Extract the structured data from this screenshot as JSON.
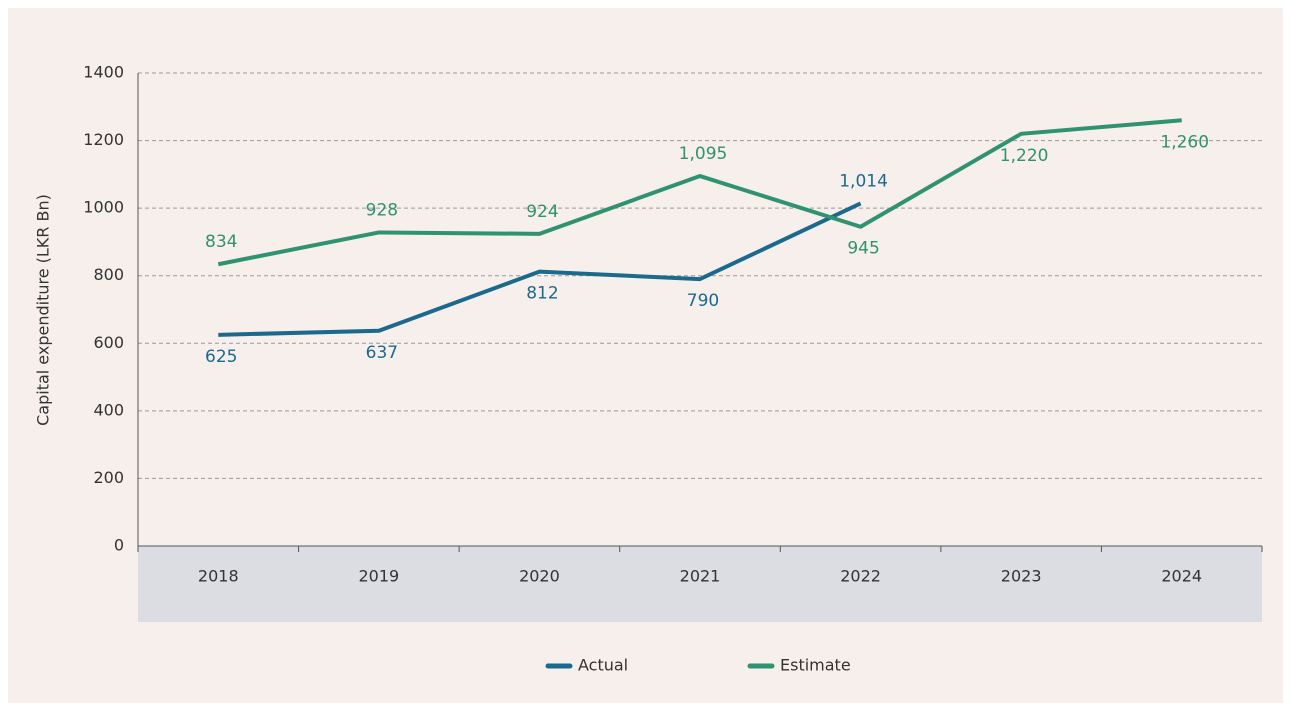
{
  "chart_data": {
    "type": "line",
    "y_axis_label": "Capital expenditure (LKR Bn)",
    "categories": [
      "2018",
      "2019",
      "2020",
      "2021",
      "2022",
      "2023",
      "2024"
    ],
    "series": [
      {
        "name": "Actual",
        "color": "#1b6a8e",
        "values": [
          625,
          637,
          812,
          790,
          1014,
          null,
          null
        ],
        "value_labels": [
          "625",
          "637",
          "812",
          "790",
          "1,014",
          null,
          null
        ]
      },
      {
        "name": "Estimate",
        "color": "#2f9270",
        "values": [
          834,
          928,
          924,
          1095,
          945,
          1220,
          1260
        ],
        "value_labels": [
          "834",
          "928",
          "924",
          "1,095",
          "945",
          "1,220",
          "1,260"
        ]
      }
    ],
    "ylim": [
      0,
      1400
    ],
    "yticks": [
      0,
      200,
      400,
      600,
      800,
      1000,
      1200,
      1400
    ],
    "grid": true,
    "legend": "bottom"
  }
}
